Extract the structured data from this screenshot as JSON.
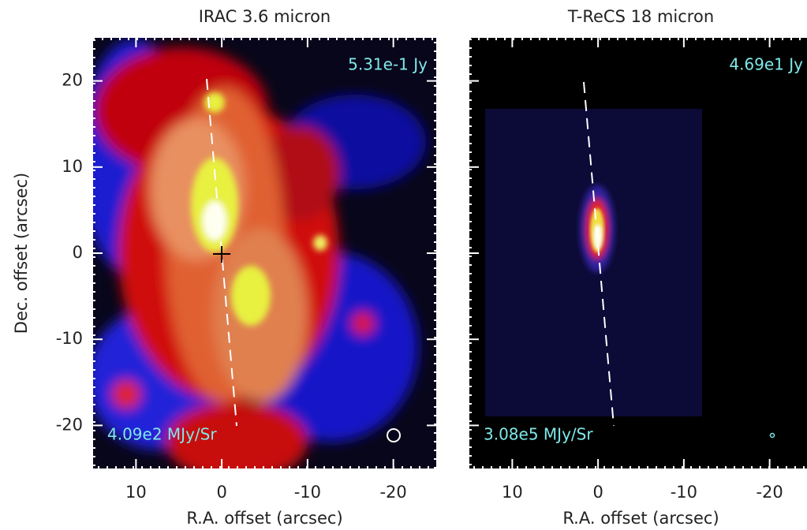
{
  "chart_data": [
    {
      "type": "image",
      "title": "IRAC 3.6 micron",
      "x_label": "R.A. offset (arcsec)",
      "y_label": "Dec. offset (arcsec)",
      "xlim": [
        15,
        -25
      ],
      "ylim": [
        -25,
        25
      ],
      "xticks": [
        10,
        0,
        -10,
        -20
      ],
      "yticks": [
        -20,
        -10,
        0,
        10,
        20
      ],
      "annotations": [
        "5.31e-1 Jy",
        "4.09e2 MJy/Sr"
      ]
    },
    {
      "type": "image",
      "title": "T-ReCS 18 micron",
      "x_label": "R.A. offset (arcsec)",
      "xlim": [
        15,
        -25
      ],
      "ylim": [
        -25,
        25
      ],
      "xticks": [
        10,
        0,
        -10,
        -20
      ],
      "yticks": [
        -20,
        -10,
        0,
        10,
        20
      ],
      "annotations": [
        "4.69e1 Jy",
        "3.08e5 MJy/Sr"
      ]
    }
  ]
}
